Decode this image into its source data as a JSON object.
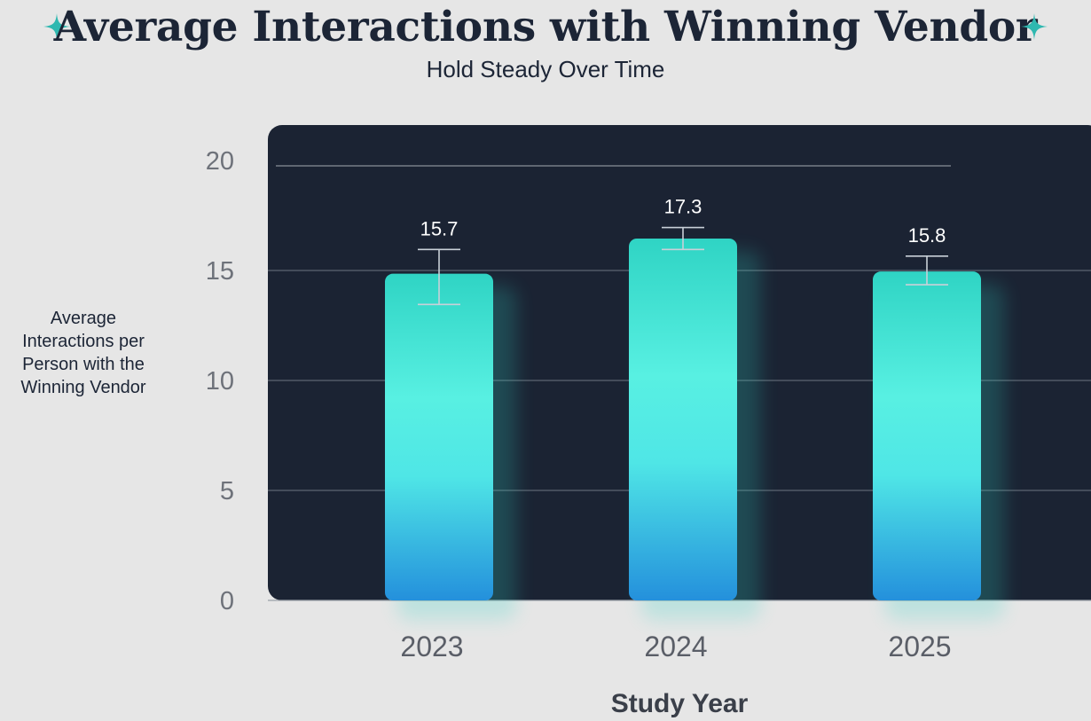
{
  "chart_data": {
    "type": "bar",
    "title": "Average Interactions with Winning Vendor",
    "subtitle": "Hold Steady Over Time",
    "xlabel": "Study Year",
    "ylabel": "Average Interactions per Person with the Winning Vendor",
    "categories": [
      "2023",
      "2024",
      "2025"
    ],
    "values": [
      15.7,
      17.3,
      15.8
    ],
    "value_labels": [
      "15.7",
      "17.3",
      "15.8"
    ],
    "error_low": [
      14.3,
      16.8,
      15.2
    ],
    "error_high": [
      16.8,
      17.8,
      16.5
    ],
    "ylim": [
      0,
      20
    ],
    "yticks": [
      0,
      5,
      10,
      15,
      20
    ],
    "grid": true,
    "legend": "none"
  },
  "colors": {
    "background": "#e6e6e6",
    "plot_background": "#1b2333",
    "bar_top": "#2fd4c4",
    "bar_mid": "#58f0e2",
    "bar_bottom": "#2490dc",
    "sparkle": "#2fb8b0",
    "text": "#1c2536"
  },
  "icons": {
    "left": "sparkle-icon",
    "right": "sparkle-icon"
  }
}
